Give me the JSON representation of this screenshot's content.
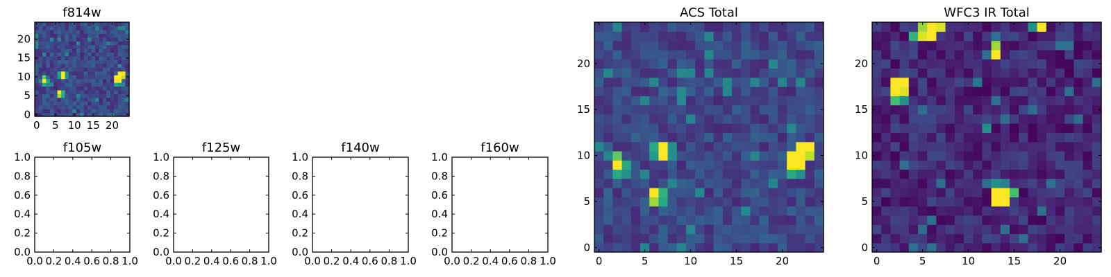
{
  "figure": {
    "colormap": "viridis",
    "colormap_stops": [
      "#440154",
      "#482878",
      "#3e4989",
      "#31688e",
      "#26828e",
      "#1f9e89",
      "#35b779",
      "#6ece58",
      "#b5de2b",
      "#fde725"
    ]
  },
  "chart_data": [
    {
      "id": "f814w",
      "type": "heatmap",
      "title": "f814w",
      "grid_size": 25,
      "xlim": [
        -0.5,
        24.5
      ],
      "ylim": [
        -0.5,
        24.5
      ],
      "xticks": [
        0,
        5,
        10,
        15,
        20
      ],
      "yticks": [
        0,
        5,
        10,
        15,
        20
      ],
      "grid": false,
      "background_level": 0.22,
      "bright_pixels": [
        {
          "x": 2,
          "y": 10,
          "v": 0.75
        },
        {
          "x": 2,
          "y": 9,
          "v": 1.0
        },
        {
          "x": 3,
          "y": 9,
          "v": 0.6
        },
        {
          "x": 2,
          "y": 8,
          "v": 0.6
        },
        {
          "x": 3,
          "y": 8,
          "v": 0.5
        },
        {
          "x": 6,
          "y": 11,
          "v": 0.6
        },
        {
          "x": 7,
          "y": 11,
          "v": 1.0
        },
        {
          "x": 8,
          "y": 11,
          "v": 0.5
        },
        {
          "x": 6,
          "y": 10,
          "v": 0.55
        },
        {
          "x": 7,
          "y": 10,
          "v": 1.0
        },
        {
          "x": 8,
          "y": 10,
          "v": 0.5
        },
        {
          "x": 6,
          "y": 6,
          "v": 1.0
        },
        {
          "x": 7,
          "y": 6,
          "v": 0.65
        },
        {
          "x": 6,
          "y": 5,
          "v": 0.85
        },
        {
          "x": 7,
          "y": 5,
          "v": 0.6
        },
        {
          "x": 22,
          "y": 11,
          "v": 1.0
        },
        {
          "x": 23,
          "y": 11,
          "v": 1.0
        },
        {
          "x": 21,
          "y": 10,
          "v": 1.0
        },
        {
          "x": 22,
          "y": 10,
          "v": 1.0
        },
        {
          "x": 23,
          "y": 10,
          "v": 0.9
        },
        {
          "x": 21,
          "y": 9,
          "v": 1.0
        },
        {
          "x": 22,
          "y": 9,
          "v": 1.0
        },
        {
          "x": 21,
          "y": 8,
          "v": 0.6
        },
        {
          "x": 22,
          "y": 8,
          "v": 0.5
        }
      ]
    },
    {
      "id": "f105w",
      "type": "scatter",
      "title": "f105w",
      "xlim": [
        0.0,
        1.0
      ],
      "ylim": [
        0.0,
        1.0
      ],
      "xticks": [
        "0.0",
        "0.2",
        "0.4",
        "0.6",
        "0.8",
        "1.0"
      ],
      "yticks": [
        "0.0",
        "0.2",
        "0.4",
        "0.6",
        "0.8",
        "1.0"
      ],
      "values": []
    },
    {
      "id": "f125w",
      "type": "scatter",
      "title": "f125w",
      "xlim": [
        0.0,
        1.0
      ],
      "ylim": [
        0.0,
        1.0
      ],
      "xticks": [
        "0.0",
        "0.2",
        "0.4",
        "0.6",
        "0.8",
        "1.0"
      ],
      "yticks": [
        "0.0",
        "0.2",
        "0.4",
        "0.6",
        "0.8",
        "1.0"
      ],
      "values": []
    },
    {
      "id": "f140w",
      "type": "scatter",
      "title": "f140w",
      "xlim": [
        0.0,
        1.0
      ],
      "ylim": [
        0.0,
        1.0
      ],
      "xticks": [
        "0.0",
        "0.2",
        "0.4",
        "0.6",
        "0.8",
        "1.0"
      ],
      "yticks": [
        "0.0",
        "0.2",
        "0.4",
        "0.6",
        "0.8",
        "1.0"
      ],
      "values": []
    },
    {
      "id": "f160w",
      "type": "scatter",
      "title": "f160w",
      "xlim": [
        0.0,
        1.0
      ],
      "ylim": [
        0.0,
        1.0
      ],
      "xticks": [
        "0.0",
        "0.2",
        "0.4",
        "0.6",
        "0.8",
        "1.0"
      ],
      "yticks": [
        "0.0",
        "0.2",
        "0.4",
        "0.6",
        "0.8",
        "1.0"
      ],
      "values": []
    },
    {
      "id": "acs_total",
      "type": "heatmap",
      "title": "ACS Total",
      "grid_size": 25,
      "xlim": [
        -0.5,
        24.5
      ],
      "ylim": [
        -0.5,
        24.5
      ],
      "xticks": [
        0,
        5,
        10,
        15,
        20
      ],
      "yticks": [
        0,
        5,
        10,
        15,
        20
      ],
      "grid": false,
      "background_level": 0.22,
      "bright_pixels": [
        {
          "x": 2,
          "y": 10,
          "v": 0.75
        },
        {
          "x": 2,
          "y": 9,
          "v": 1.0
        },
        {
          "x": 3,
          "y": 9,
          "v": 0.6
        },
        {
          "x": 2,
          "y": 8,
          "v": 0.6
        },
        {
          "x": 3,
          "y": 8,
          "v": 0.5
        },
        {
          "x": 6,
          "y": 11,
          "v": 0.6
        },
        {
          "x": 7,
          "y": 11,
          "v": 1.0
        },
        {
          "x": 8,
          "y": 11,
          "v": 0.5
        },
        {
          "x": 6,
          "y": 10,
          "v": 0.55
        },
        {
          "x": 7,
          "y": 10,
          "v": 1.0
        },
        {
          "x": 8,
          "y": 10,
          "v": 0.5
        },
        {
          "x": 6,
          "y": 6,
          "v": 1.0
        },
        {
          "x": 7,
          "y": 6,
          "v": 0.65
        },
        {
          "x": 6,
          "y": 5,
          "v": 0.85
        },
        {
          "x": 7,
          "y": 5,
          "v": 0.6
        },
        {
          "x": 22,
          "y": 11,
          "v": 1.0
        },
        {
          "x": 23,
          "y": 11,
          "v": 1.0
        },
        {
          "x": 21,
          "y": 10,
          "v": 1.0
        },
        {
          "x": 22,
          "y": 10,
          "v": 1.0
        },
        {
          "x": 23,
          "y": 10,
          "v": 0.9
        },
        {
          "x": 21,
          "y": 9,
          "v": 1.0
        },
        {
          "x": 22,
          "y": 9,
          "v": 1.0
        },
        {
          "x": 21,
          "y": 8,
          "v": 0.6
        },
        {
          "x": 22,
          "y": 8,
          "v": 0.5
        }
      ]
    },
    {
      "id": "wfc3_ir_total",
      "type": "heatmap",
      "title": "WFC3 IR Total",
      "grid_size": 25,
      "xlim": [
        -0.5,
        24.5
      ],
      "ylim": [
        -0.5,
        24.5
      ],
      "xticks": [
        0,
        5,
        10,
        15,
        20
      ],
      "yticks": [
        0,
        5,
        10,
        15,
        20
      ],
      "grid": false,
      "background_level": 0.12,
      "bright_pixels": [
        {
          "x": 5,
          "y": 24,
          "v": 0.85
        },
        {
          "x": 6,
          "y": 24,
          "v": 1.0
        },
        {
          "x": 7,
          "y": 24,
          "v": 0.95
        },
        {
          "x": 4,
          "y": 23,
          "v": 0.65
        },
        {
          "x": 5,
          "y": 23,
          "v": 0.95
        },
        {
          "x": 6,
          "y": 23,
          "v": 1.0
        },
        {
          "x": 18,
          "y": 24,
          "v": 1.0
        },
        {
          "x": 17,
          "y": 24,
          "v": 0.5
        },
        {
          "x": 13,
          "y": 22,
          "v": 0.85
        },
        {
          "x": 13,
          "y": 21,
          "v": 1.0
        },
        {
          "x": 2,
          "y": 18,
          "v": 1.0
        },
        {
          "x": 3,
          "y": 18,
          "v": 1.0
        },
        {
          "x": 2,
          "y": 17,
          "v": 1.0
        },
        {
          "x": 3,
          "y": 17,
          "v": 0.95
        },
        {
          "x": 2,
          "y": 16,
          "v": 0.7
        },
        {
          "x": 3,
          "y": 16,
          "v": 0.5
        },
        {
          "x": 11,
          "y": 18,
          "v": 0.4
        },
        {
          "x": 12,
          "y": 13,
          "v": 0.5
        },
        {
          "x": 13,
          "y": 7,
          "v": 0.5
        },
        {
          "x": 14,
          "y": 7,
          "v": 0.45
        },
        {
          "x": 13,
          "y": 6,
          "v": 1.0
        },
        {
          "x": 14,
          "y": 6,
          "v": 1.0
        },
        {
          "x": 15,
          "y": 6,
          "v": 0.7
        },
        {
          "x": 13,
          "y": 5,
          "v": 1.0
        },
        {
          "x": 14,
          "y": 5,
          "v": 1.0
        }
      ]
    }
  ]
}
